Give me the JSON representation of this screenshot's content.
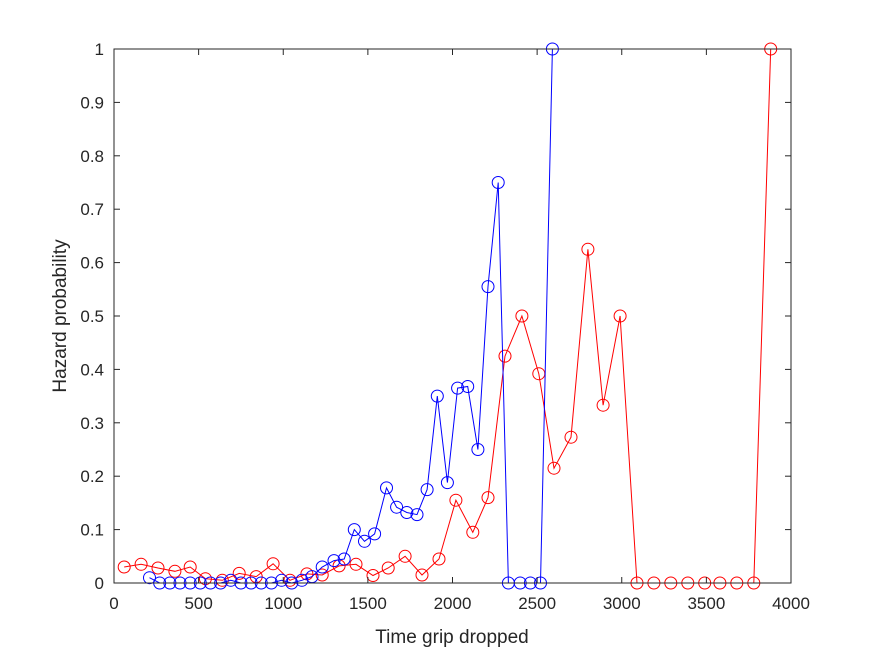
{
  "chart_data": {
    "type": "line",
    "title": "",
    "xlabel": "Time grip dropped",
    "ylabel": "Hazard probability",
    "xlim": [
      0,
      4000
    ],
    "ylim": [
      0,
      1
    ],
    "xticks": [
      0,
      500,
      1000,
      1500,
      2000,
      2500,
      3000,
      3500,
      4000
    ],
    "yticks": [
      0,
      0.1,
      0.2,
      0.3,
      0.4,
      0.5,
      0.6,
      0.7,
      0.8,
      0.9,
      1
    ],
    "xtick_labels": [
      "0",
      "500",
      "1000",
      "1500",
      "2000",
      "2500",
      "3000",
      "3500",
      "4000"
    ],
    "ytick_labels": [
      "0",
      "0.1",
      "0.2",
      "0.3",
      "0.4",
      "0.5",
      "0.6",
      "0.7",
      "0.8",
      "0.9",
      "1"
    ],
    "grid": false,
    "box": true,
    "marker": "circle-open",
    "series": [
      {
        "color": "#0000ff",
        "x": [
          210,
          270,
          330,
          390,
          450,
          510,
          570,
          630,
          690,
          750,
          810,
          870,
          930,
          990,
          1050,
          1110,
          1170,
          1230,
          1300,
          1360,
          1420,
          1480,
          1540,
          1610,
          1670,
          1730,
          1790,
          1850,
          1910,
          1970,
          2030,
          2090,
          2150,
          2210,
          2270,
          2330,
          2400,
          2460,
          2520,
          2590
        ],
        "y": [
          0.01,
          0.0,
          0.0,
          0.0,
          0.0,
          0.0,
          0.0,
          0.0,
          0.005,
          0.0,
          0.0,
          0.0,
          0.0,
          0.005,
          0.0,
          0.005,
          0.012,
          0.03,
          0.042,
          0.045,
          0.1,
          0.078,
          0.092,
          0.178,
          0.142,
          0.132,
          0.128,
          0.175,
          0.35,
          0.188,
          0.365,
          0.368,
          0.25,
          0.555,
          0.75,
          0.0,
          0.0,
          0.0,
          0.0,
          1.0
        ]
      },
      {
        "color": "#ff0000",
        "x": [
          60,
          160,
          260,
          360,
          450,
          540,
          640,
          740,
          840,
          940,
          1040,
          1140,
          1230,
          1330,
          1430,
          1530,
          1620,
          1720,
          1820,
          1920,
          2020,
          2120,
          2210,
          2310,
          2410,
          2510,
          2600,
          2700,
          2800,
          2890,
          2990,
          3090,
          3190,
          3290,
          3390,
          3490,
          3580,
          3680,
          3780,
          3880
        ],
        "y": [
          0.03,
          0.035,
          0.028,
          0.022,
          0.03,
          0.008,
          0.005,
          0.018,
          0.012,
          0.036,
          0.005,
          0.017,
          0.015,
          0.032,
          0.035,
          0.014,
          0.028,
          0.05,
          0.015,
          0.045,
          0.155,
          0.095,
          0.16,
          0.425,
          0.5,
          0.392,
          0.215,
          0.273,
          0.625,
          0.333,
          0.5,
          0.0,
          0.0,
          0.0,
          0.0,
          0.0,
          0.0,
          0.0,
          0.0,
          1.0
        ]
      }
    ]
  }
}
